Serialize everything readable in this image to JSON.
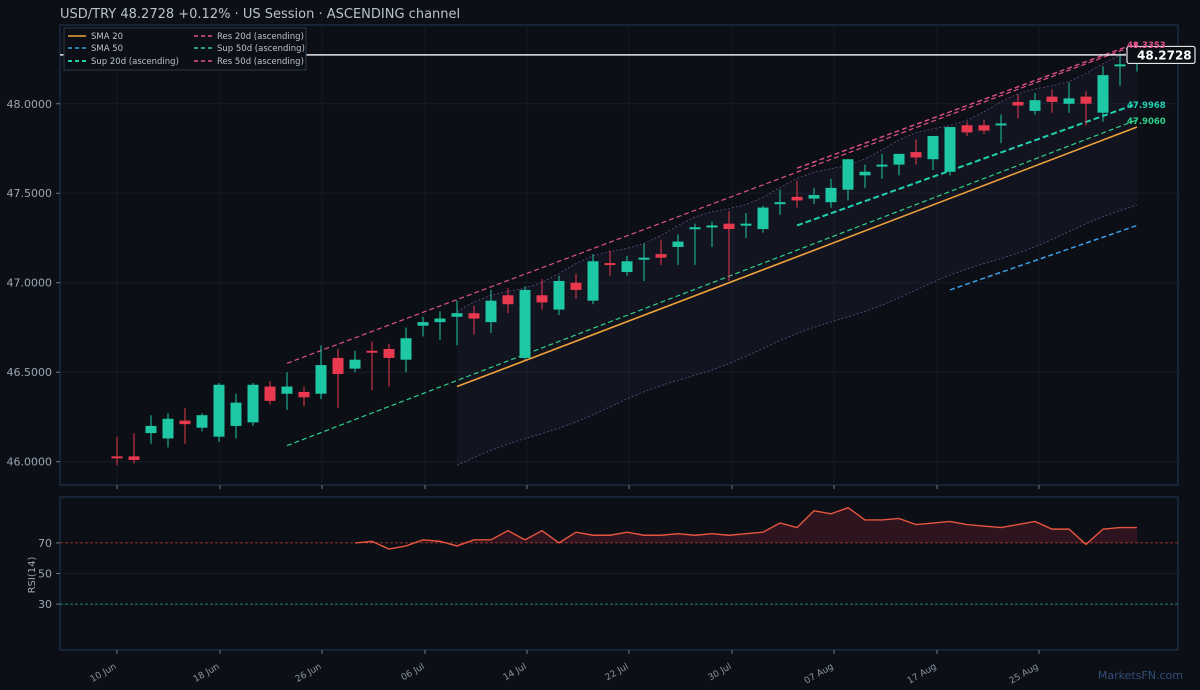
{
  "header": {
    "title": "USD/TRY   48.2728   +0.12%  ·  US Session  ·  ASCENDING channel"
  },
  "colors": {
    "up": "#1ec8a5",
    "down": "#e8394f",
    "sma20": "#f0a23a",
    "sma50": "#3aa0e8",
    "res": "#e0508a",
    "sup": "#20d0b0",
    "rsi": "#e8553f",
    "bg": "#0c0f16",
    "border": "#1f3a55"
  },
  "price_tag": "48.2728",
  "watermark": "MarketsFN.com",
  "level_labels": [
    {
      "text": "48.3353",
      "color": "#e0508a"
    },
    {
      "text": "47.9968",
      "color": "#20d0b0"
    },
    {
      "text": "47.9060",
      "color": "#2ecf8a"
    }
  ],
  "legend": [
    {
      "label": "SMA 20",
      "color": "#f0a23a",
      "dash": false
    },
    {
      "label": "Res 20d (ascending)",
      "color": "#e0508a",
      "dash": true
    },
    {
      "label": "SMA 50",
      "color": "#3aa0e8",
      "dash": true
    },
    {
      "label": "Sup 50d (ascending)",
      "color": "#2ecf8a",
      "dash": true
    },
    {
      "label": "Sup 20d (ascending)",
      "color": "#20d0b0",
      "dash": true
    },
    {
      "label": "Res 50d (ascending)",
      "color": "#e0508a",
      "dash": true
    }
  ],
  "rsi_panel": {
    "ylabel": "RSI(14)"
  },
  "chart_data": [
    {
      "type": "candlestick",
      "title": "USD/TRY   48.2728   +0.12%  ·  US Session  ·  ASCENDING channel",
      "x_tick_labels": [
        "10 Jun",
        "18 Jun",
        "26 Jun",
        "06 Jul",
        "14 Jul",
        "22 Jul",
        "30 Jul",
        "07 Aug",
        "17 Aug",
        "25 Aug"
      ],
      "y_ticks": [
        46.0,
        46.5,
        47.0,
        47.5,
        48.0
      ],
      "y_tick_labels": [
        "46.0000",
        "46.5000",
        "47.0000",
        "47.5000",
        "48.0000"
      ],
      "ylim": [
        45.87,
        48.44
      ],
      "candles": [
        [
          46.03,
          46.14,
          45.98,
          46.02
        ],
        [
          46.03,
          46.16,
          45.99,
          46.01
        ],
        [
          46.16,
          46.26,
          46.1,
          46.2
        ],
        [
          46.13,
          46.27,
          46.08,
          46.24
        ],
        [
          46.23,
          46.3,
          46.1,
          46.21
        ],
        [
          46.19,
          46.27,
          46.17,
          46.26
        ],
        [
          46.14,
          46.44,
          46.11,
          46.43
        ],
        [
          46.2,
          46.38,
          46.13,
          46.33
        ],
        [
          46.22,
          46.44,
          46.2,
          46.43
        ],
        [
          46.42,
          46.45,
          46.32,
          46.34
        ],
        [
          46.38,
          46.5,
          46.29,
          46.42
        ],
        [
          46.39,
          46.42,
          46.31,
          46.36
        ],
        [
          46.38,
          46.65,
          46.35,
          46.54
        ],
        [
          46.58,
          46.63,
          46.3,
          46.49
        ],
        [
          46.52,
          46.62,
          46.5,
          46.57
        ],
        [
          46.62,
          46.67,
          46.4,
          46.61
        ],
        [
          46.63,
          46.66,
          46.42,
          46.58
        ],
        [
          46.57,
          46.75,
          46.5,
          46.69
        ],
        [
          46.76,
          46.81,
          46.7,
          46.78
        ],
        [
          46.78,
          46.84,
          46.68,
          46.8
        ],
        [
          46.81,
          46.9,
          46.65,
          46.83
        ],
        [
          46.83,
          46.87,
          46.71,
          46.8
        ],
        [
          46.78,
          46.96,
          46.72,
          46.9
        ],
        [
          46.93,
          46.97,
          46.83,
          46.88
        ],
        [
          46.58,
          46.98,
          46.57,
          46.96
        ],
        [
          46.93,
          47.02,
          46.85,
          46.89
        ],
        [
          46.85,
          47.04,
          46.82,
          47.01
        ],
        [
          47.0,
          47.05,
          46.91,
          46.96
        ],
        [
          46.9,
          47.16,
          46.88,
          47.12
        ],
        [
          47.11,
          47.18,
          47.04,
          47.1
        ],
        [
          47.06,
          47.15,
          47.04,
          47.12
        ],
        [
          47.13,
          47.22,
          47.01,
          47.14
        ],
        [
          47.16,
          47.24,
          47.1,
          47.14
        ],
        [
          47.2,
          47.27,
          47.1,
          47.23
        ],
        [
          47.3,
          47.33,
          47.1,
          47.31
        ],
        [
          47.31,
          47.34,
          47.2,
          47.32
        ],
        [
          47.33,
          47.4,
          47.01,
          47.3
        ],
        [
          47.32,
          47.39,
          47.25,
          47.33
        ],
        [
          47.3,
          47.43,
          47.28,
          47.42
        ],
        [
          47.45,
          47.52,
          47.38,
          47.45
        ],
        [
          47.48,
          47.57,
          47.42,
          47.46
        ],
        [
          47.47,
          47.53,
          47.44,
          47.49
        ],
        [
          47.45,
          47.58,
          47.42,
          47.53
        ],
        [
          47.52,
          47.69,
          47.46,
          47.69
        ],
        [
          47.6,
          47.66,
          47.53,
          47.62
        ],
        [
          47.65,
          47.72,
          47.58,
          47.66
        ],
        [
          47.66,
          47.72,
          47.6,
          47.72
        ],
        [
          47.73,
          47.8,
          47.66,
          47.7
        ],
        [
          47.69,
          47.81,
          47.63,
          47.82
        ],
        [
          47.62,
          47.87,
          47.6,
          47.87
        ],
        [
          47.88,
          47.9,
          47.82,
          47.84
        ],
        [
          47.88,
          47.91,
          47.83,
          47.85
        ],
        [
          47.89,
          47.94,
          47.78,
          47.89
        ],
        [
          48.01,
          48.05,
          47.92,
          47.99
        ],
        [
          47.96,
          48.06,
          47.94,
          48.02
        ],
        [
          48.04,
          48.08,
          47.95,
          48.01
        ],
        [
          48.0,
          48.12,
          47.95,
          48.03
        ],
        [
          48.04,
          48.07,
          47.88,
          48.0
        ],
        [
          47.95,
          48.21,
          47.9,
          48.16
        ],
        [
          48.21,
          48.28,
          48.1,
          48.22
        ],
        [
          48.25,
          48.3,
          48.18,
          48.27
        ]
      ],
      "indicators": {
        "sma20": {
          "from_index": 20,
          "start": 46.42,
          "end": 47.87
        },
        "sma50_channel_lower": {
          "from_index": 20,
          "start": 45.98,
          "end": 47.43
        },
        "res20": {
          "x_index_range": [
            40,
            60
          ],
          "values": [
            47.64,
            48.34
          ]
        },
        "sup20": {
          "x_index_range": [
            40,
            60
          ],
          "values": [
            47.32,
            48.0
          ]
        },
        "res50": {
          "x_index_range": [
            10,
            60
          ],
          "values": [
            46.55,
            48.33
          ]
        },
        "sup50": {
          "x_index_range": [
            10,
            60
          ],
          "values": [
            46.09,
            47.91
          ]
        },
        "sma50_dashed": {
          "x_index_range": [
            49,
            60
          ],
          "values": [
            46.96,
            47.32
          ]
        },
        "price_line": 48.2728
      }
    },
    {
      "type": "line",
      "ylabel": "RSI(14)",
      "y_ticks": [
        30,
        50,
        70
      ],
      "ylim": [
        0,
        100
      ],
      "reference_lines": [
        70,
        30
      ],
      "series": [
        {
          "values": [
            70,
            71,
            66,
            68,
            72,
            71,
            68,
            72,
            72,
            78,
            72,
            78,
            70,
            77,
            75,
            75,
            77,
            75,
            75,
            76,
            75,
            76,
            75,
            76,
            77,
            83,
            80,
            91,
            89,
            93,
            85,
            85,
            86,
            82,
            83,
            84,
            82,
            81,
            80,
            82,
            84,
            79,
            79,
            69,
            79,
            80,
            80
          ]
        }
      ],
      "x_start_index": 14
    }
  ]
}
